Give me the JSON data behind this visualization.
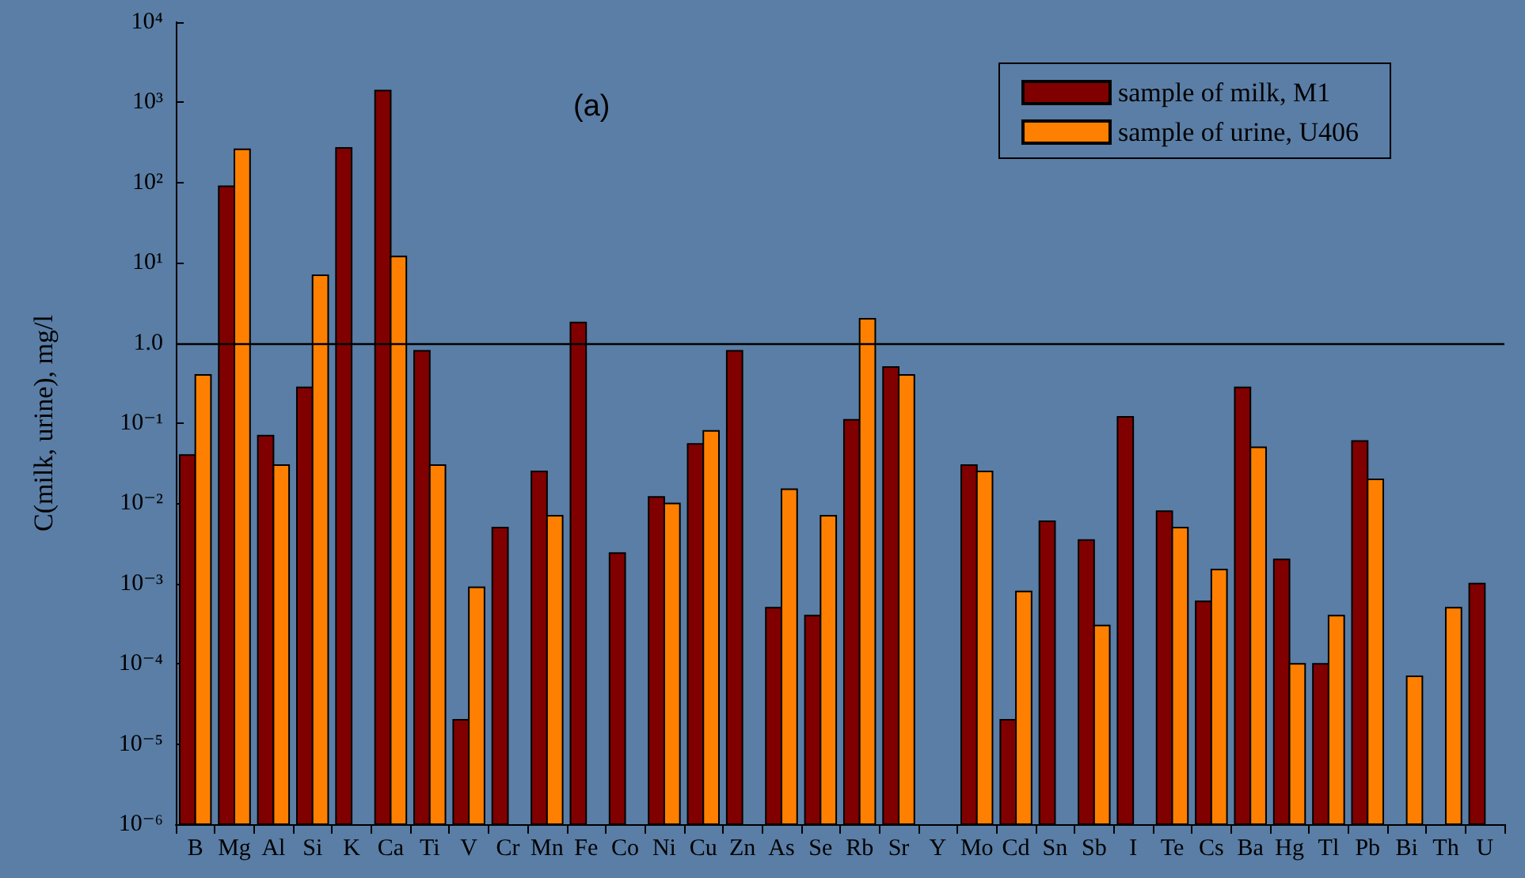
{
  "chart_data": {
    "type": "bar",
    "ylabel": "C(milk, urine), mg/l",
    "annotations": [
      "(a)"
    ],
    "categories": [
      "B",
      "Mg",
      "Al",
      "Si",
      "K",
      "Ca",
      "Ti",
      "V",
      "Cr",
      "Mn",
      "Fe",
      "Co",
      "Ni",
      "Cu",
      "Zn",
      "As",
      "Se",
      "Rb",
      "Sr",
      "Y",
      "Mo",
      "Cd",
      "Sn",
      "Sb",
      "I",
      "Te",
      "Cs",
      "Ba",
      "Hg",
      "Tl",
      "Pb",
      "Bi",
      "Th",
      "U"
    ],
    "series": [
      {
        "name": "sample of milk, M1",
        "color": "#800000",
        "values": [
          0.04,
          90,
          0.07,
          0.28,
          270,
          1400,
          0.8,
          2e-05,
          0.005,
          0.025,
          1.8,
          0.0024,
          0.012,
          0.055,
          0.8,
          0.0005,
          0.0004,
          0.11,
          0.5,
          null,
          0.03,
          2e-05,
          0.006,
          0.0035,
          0.12,
          0.008,
          0.0006,
          0.28,
          0.002,
          0.0001,
          0.06,
          null,
          null,
          0.001
        ]
      },
      {
        "name": "sample of urine, U406",
        "color": "#ff8000",
        "values": [
          0.4,
          260,
          0.03,
          7,
          null,
          12,
          0.03,
          0.0009,
          null,
          0.007,
          null,
          null,
          0.01,
          0.08,
          null,
          0.015,
          0.007,
          2,
          0.4,
          null,
          0.025,
          0.0008,
          null,
          0.0003,
          null,
          0.005,
          0.0015,
          0.05,
          0.0001,
          0.0004,
          0.02,
          7e-05,
          0.0005,
          null
        ]
      }
    ],
    "log": "y",
    "ylim": [
      1e-06,
      10000
    ],
    "yticks": [
      {
        "value": 1e-06,
        "label": "10⁻⁶"
      },
      {
        "value": 1e-05,
        "label": "10⁻⁵"
      },
      {
        "value": 0.0001,
        "label": "10⁻⁴"
      },
      {
        "value": 0.001,
        "label": "10⁻³"
      },
      {
        "value": 0.01,
        "label": "10⁻²"
      },
      {
        "value": 0.1,
        "label": "10⁻¹"
      },
      {
        "value": 1,
        "label": "1.0"
      },
      {
        "value": 10,
        "label": "10¹"
      },
      {
        "value": 100,
        "label": "10²"
      },
      {
        "value": 1000,
        "label": "10³"
      },
      {
        "value": 10000,
        "label": "10⁴"
      }
    ],
    "ref_lines": [
      {
        "axis": "y",
        "value": 1,
        "color": "#000000"
      }
    ],
    "legend": "top right",
    "grid": false
  }
}
